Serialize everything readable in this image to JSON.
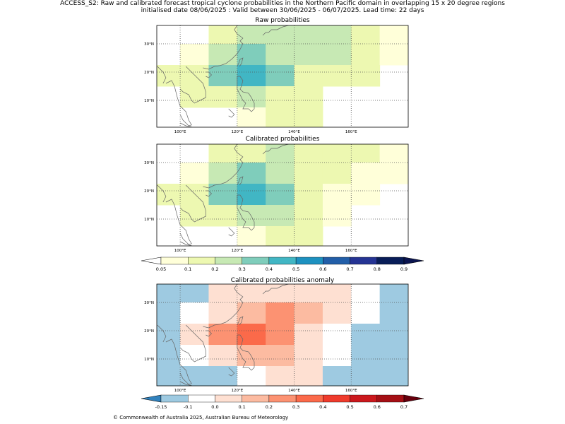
{
  "title": {
    "line1": "ACCESS_S2: Raw and calibrated forecast tropical cyclone probabilities in the Northern Pacific domain in overlapping 15 x 20 degree regions",
    "line2": "initialised date 08/06/2025 :  Valid between 30/06/2025 - 06/07/2025. Lead time: 22 days"
  },
  "footer": "© Commonwealth of Australia 2025, Australian Bureau of Meteorology",
  "map_axes": {
    "lon_ticks": [
      "100°E",
      "120°E",
      "140°E",
      "160°E"
    ],
    "lat_ticks": [
      "30°N",
      "20°N",
      "10°N"
    ],
    "lon_values": [
      100,
      120,
      140,
      160
    ],
    "lat_values": [
      30,
      20,
      10
    ],
    "lon_range": [
      91.8,
      180
    ],
    "lat_range": [
      0.5,
      36.5
    ]
  },
  "chart_data": [
    {
      "type": "heatmap",
      "title": "Raw probabilities",
      "cell_lon_edges": [
        90,
        100,
        110,
        120,
        130,
        140,
        150,
        160,
        170,
        180
      ],
      "cell_lat_edges": [
        0,
        7.5,
        15,
        22.5,
        30,
        37.5
      ],
      "rows_top_to_bottom": [
        [
          null,
          null,
          0.1,
          0.2,
          0.2,
          0.2,
          0.2,
          0.1,
          0.05
        ],
        [
          null,
          0.05,
          0.2,
          0.3,
          0.2,
          0.2,
          0.2,
          0.1,
          0.05
        ],
        [
          0.1,
          0.1,
          0.3,
          0.4,
          0.3,
          0.1,
          0.1,
          0.1,
          null
        ],
        [
          null,
          0.1,
          0.1,
          0.2,
          0.1,
          0.1,
          null,
          null,
          null
        ],
        [
          null,
          null,
          null,
          0.05,
          0.1,
          0.1,
          null,
          null,
          null
        ]
      ]
    },
    {
      "type": "heatmap",
      "title": "Calibrated probabilities",
      "cell_lon_edges": [
        90,
        100,
        110,
        120,
        130,
        140,
        150,
        160,
        170,
        180
      ],
      "cell_lat_edges": [
        0,
        7.5,
        15,
        22.5,
        30,
        37.5
      ],
      "rows_top_to_bottom": [
        [
          null,
          null,
          0.1,
          0.1,
          0.2,
          0.1,
          0.1,
          0.1,
          0.05
        ],
        [
          null,
          0.05,
          0.2,
          0.3,
          0.2,
          0.1,
          0.1,
          0.05,
          0.05
        ],
        [
          0.1,
          0.1,
          0.3,
          0.4,
          0.3,
          0.1,
          0.05,
          0.05,
          null
        ],
        [
          null,
          0.1,
          0.1,
          0.2,
          0.2,
          0.1,
          0.05,
          null,
          null
        ],
        [
          null,
          null,
          null,
          0.05,
          0.1,
          0.1,
          null,
          null,
          null
        ]
      ]
    },
    {
      "type": "heatmap",
      "title": "Calibrated probabilities anomaly",
      "cell_lon_edges": [
        90,
        100,
        110,
        120,
        130,
        140,
        150,
        160,
        170,
        180
      ],
      "cell_lat_edges": [
        0,
        7.5,
        15,
        22.5,
        30,
        37.5
      ],
      "rows_top_to_bottom": [
        [
          -0.15,
          -0.15,
          0.0,
          0.0,
          0.0,
          0.0,
          0.0,
          -0.1,
          -0.15
        ],
        [
          -0.15,
          -0.1,
          0.0,
          0.1,
          0.2,
          0.1,
          0.0,
          -0.1,
          -0.15
        ],
        [
          -0.15,
          0.0,
          0.2,
          0.3,
          0.2,
          0.0,
          -0.1,
          -0.15,
          -0.15
        ],
        [
          -0.15,
          -0.1,
          0.0,
          0.1,
          0.1,
          0.0,
          -0.1,
          -0.15,
          -0.15
        ],
        [
          -0.15,
          -0.15,
          -0.15,
          -0.1,
          0.0,
          0.0,
          -0.15,
          -0.15,
          -0.15
        ]
      ]
    }
  ],
  "prob_colorbar": {
    "labels": [
      "0.05",
      "0.1",
      "0.2",
      "0.3",
      "0.4",
      "0.5",
      "0.6",
      "0.7",
      "0.8",
      "0.9"
    ],
    "colors": [
      "#ffffd9",
      "#edf8b1",
      "#c7e9b4",
      "#7fcdbb",
      "#41b6c4",
      "#1d91c0",
      "#225ea8",
      "#253494",
      "#081d58"
    ],
    "under_color": "#ffffff",
    "over_color": "#0b1550"
  },
  "anom_colorbar": {
    "labels": [
      "-0.15",
      "-0.1",
      "0.0",
      "0.1",
      "0.2",
      "0.3",
      "0.4",
      "0.5",
      "0.6",
      "0.7"
    ],
    "colors": [
      "#9ecae1",
      "#ffffff",
      "#fee0d2",
      "#fcbba1",
      "#fc9272",
      "#fb6a4a",
      "#ef3b2c",
      "#cb181d",
      "#a50f15"
    ],
    "under_color": "#3182bd",
    "over_color": "#67000d"
  }
}
